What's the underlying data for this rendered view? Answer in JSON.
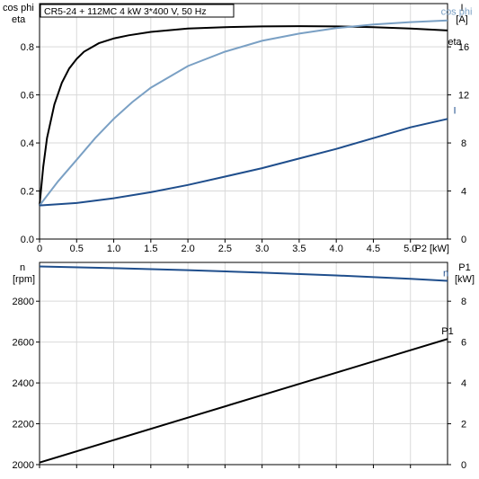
{
  "title": "CR5-24 + 112MC   4 kW   3*400 V, 50 Hz",
  "colors": {
    "eta": "#000000",
    "cos_phi": "#7aa0c4",
    "current": "#1f4e8c",
    "speed": "#1f4e8c",
    "p1": "#000000",
    "grid": "#d9d9d9",
    "axis": "#000000"
  },
  "chart_data": [
    {
      "type": "line",
      "x_unit_label": "P2 [kW]",
      "x_ticks": [
        "0",
        "0.5",
        "1.0",
        "1.5",
        "2.0",
        "2.5",
        "3.0",
        "3.5",
        "4.0",
        "4.5",
        "5.0"
      ],
      "xlim": [
        0,
        5.5
      ],
      "left_axis_label_1": "cos phi",
      "left_axis_label_2": "eta",
      "left_ticks": [
        "0.0",
        "0.2",
        "0.4",
        "0.6",
        "0.8"
      ],
      "ylim_left": [
        0,
        0.98
      ],
      "right_axis_label_1": "I",
      "right_axis_label_2": "[A]",
      "right_ticks": [
        "0",
        "4",
        "8",
        "12",
        "16"
      ],
      "ylim_right": [
        0,
        19.6
      ],
      "grid": true,
      "series": [
        {
          "name": "eta",
          "axis": "left",
          "x": [
            0,
            0.05,
            0.1,
            0.2,
            0.3,
            0.4,
            0.5,
            0.6,
            0.8,
            1.0,
            1.2,
            1.5,
            2.0,
            2.5,
            3.0,
            3.5,
            4.0,
            4.5,
            5.0,
            5.5
          ],
          "y": [
            0.14,
            0.3,
            0.42,
            0.56,
            0.65,
            0.71,
            0.75,
            0.78,
            0.815,
            0.835,
            0.848,
            0.862,
            0.876,
            0.882,
            0.885,
            0.886,
            0.885,
            0.882,
            0.876,
            0.868
          ]
        },
        {
          "name": "cos phi",
          "axis": "left",
          "x": [
            0,
            0.25,
            0.5,
            0.75,
            1.0,
            1.25,
            1.5,
            2.0,
            2.5,
            3.0,
            3.5,
            4.0,
            4.5,
            5.0,
            5.5
          ],
          "y": [
            0.14,
            0.24,
            0.33,
            0.42,
            0.5,
            0.57,
            0.63,
            0.72,
            0.78,
            0.825,
            0.855,
            0.878,
            0.893,
            0.903,
            0.91
          ]
        },
        {
          "name": "I",
          "axis": "right",
          "x": [
            0,
            0.5,
            1.0,
            1.5,
            2.0,
            2.5,
            3.0,
            3.5,
            4.0,
            4.5,
            5.0,
            5.5
          ],
          "y": [
            2.8,
            3.0,
            3.4,
            3.9,
            4.5,
            5.2,
            5.9,
            6.7,
            7.5,
            8.4,
            9.3,
            10.0
          ]
        }
      ]
    },
    {
      "type": "line",
      "x_unit_label": "",
      "xlim": [
        0,
        5.5
      ],
      "left_axis_label_1": "n",
      "left_axis_label_2": "[rpm]",
      "left_ticks": [
        "2000",
        "2200",
        "2400",
        "2600",
        "2800"
      ],
      "ylim_left": [
        2000,
        2990
      ],
      "right_axis_label_1": "P1",
      "right_axis_label_2": "[kW]",
      "right_ticks": [
        "0",
        "2",
        "4",
        "6",
        "8"
      ],
      "ylim_right": [
        0,
        9.9
      ],
      "grid": true,
      "series": [
        {
          "name": "n",
          "axis": "left",
          "x": [
            0,
            1.0,
            2.0,
            3.0,
            4.0,
            5.0,
            5.5
          ],
          "y": [
            2970,
            2962,
            2952,
            2940,
            2926,
            2910,
            2900
          ]
        },
        {
          "name": "P1",
          "axis": "right",
          "x": [
            0,
            1.0,
            2.0,
            3.0,
            4.0,
            5.0,
            5.5
          ],
          "y": [
            0.1,
            1.2,
            2.3,
            3.4,
            4.5,
            5.6,
            6.15
          ]
        }
      ]
    }
  ]
}
